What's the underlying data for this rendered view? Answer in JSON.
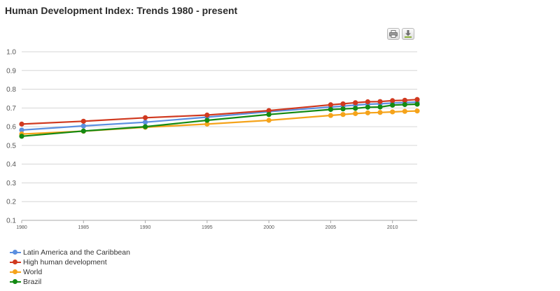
{
  "header": {
    "title": "Human Development Index: Trends 1980 - present"
  },
  "toolbar": {
    "print_icon": "printer-icon",
    "download_icon": "download-icon"
  },
  "chart_data": {
    "type": "line",
    "title": "Human Development Index: Trends 1980 - present",
    "xlabel": "",
    "ylabel": "",
    "xlim": [
      1980,
      2012
    ],
    "ylim": [
      0.1,
      1.0
    ],
    "x_ticks": [
      1980,
      1985,
      1990,
      1995,
      2000,
      2005,
      2010
    ],
    "y_ticks": [
      "0.1",
      "0.2",
      "0.3",
      "0.4",
      "0.5",
      "0.6",
      "0.7",
      "0.8",
      "0.9",
      "1.0"
    ],
    "grid": true,
    "legend_position": "bottom-left",
    "series": [
      {
        "name": "Latin America and the Caribbean",
        "color": "#5b8fe0",
        "x": [
          1980,
          1985,
          1990,
          1995,
          2000,
          2005,
          2006,
          2007,
          2008,
          2009,
          2010,
          2011,
          2012
        ],
        "y": [
          0.582,
          0.604,
          0.624,
          0.651,
          0.68,
          0.705,
          0.71,
          0.715,
          0.72,
          0.722,
          0.726,
          0.729,
          0.731
        ]
      },
      {
        "name": "High human development",
        "color": "#d0391f",
        "x": [
          1980,
          1985,
          1990,
          1995,
          2000,
          2005,
          2006,
          2007,
          2008,
          2009,
          2010,
          2011,
          2012
        ],
        "y": [
          0.614,
          0.629,
          0.648,
          0.662,
          0.686,
          0.717,
          0.722,
          0.728,
          0.733,
          0.734,
          0.739,
          0.741,
          0.745
        ]
      },
      {
        "name": "World",
        "color": "#f5a31a",
        "x": [
          1980,
          1985,
          1990,
          1995,
          2000,
          2005,
          2006,
          2007,
          2008,
          2009,
          2010,
          2011,
          2012
        ],
        "y": [
          0.561,
          0.576,
          0.597,
          0.614,
          0.634,
          0.66,
          0.665,
          0.67,
          0.674,
          0.676,
          0.679,
          0.682,
          0.684
        ]
      },
      {
        "name": "Brazil",
        "color": "#138a13",
        "x": [
          1980,
          1985,
          1990,
          1995,
          2000,
          2005,
          2006,
          2007,
          2008,
          2009,
          2010,
          2011,
          2012
        ],
        "y": [
          0.549,
          0.577,
          0.6,
          0.634,
          0.665,
          0.692,
          0.695,
          0.698,
          0.704,
          0.705,
          0.715,
          0.718,
          0.72
        ]
      }
    ]
  }
}
